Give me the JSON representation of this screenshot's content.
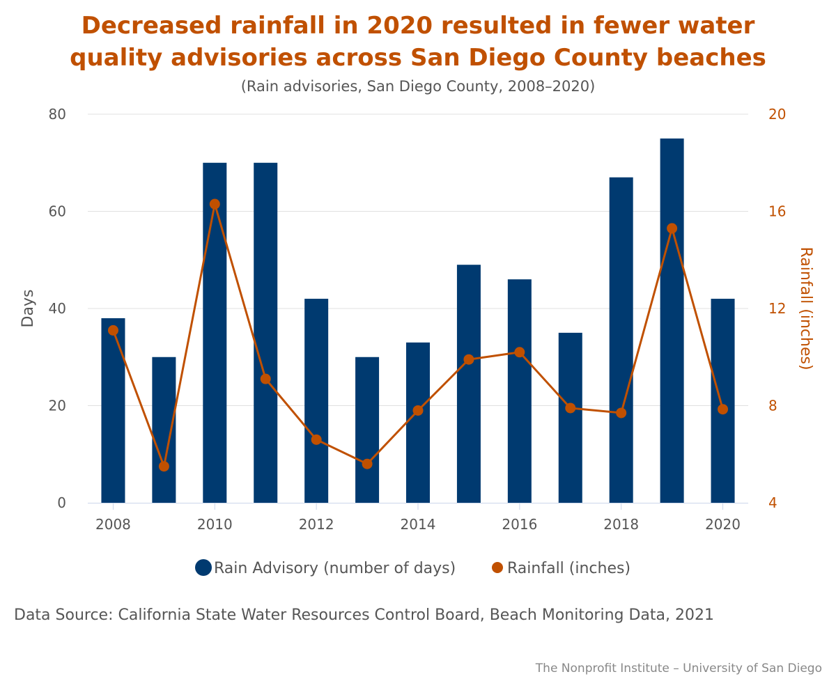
{
  "title_line1": "Decreased rainfall in 2020 resulted in fewer water",
  "title_line2": "quality advisories across San Diego County beaches",
  "subtitle": "(Rain advisories, San Diego County, 2008–2020)",
  "source": "Data Source: California State Water Resources Control Board, Beach Monitoring Data, 2021",
  "credit": "The Nonprofit Institute – University of San Diego",
  "colors": {
    "bar": "#003a70",
    "line": "#c05000",
    "title": "#c05000",
    "axis_text": "#555555",
    "grid": "#e0e0e0"
  },
  "chart_data": {
    "type": "bar",
    "categories": [
      "2008",
      "2009",
      "2010",
      "2011",
      "2012",
      "2013",
      "2014",
      "2015",
      "2016",
      "2017",
      "2018",
      "2019",
      "2020"
    ],
    "x_tick_labels": [
      "2008",
      "2010",
      "2012",
      "2014",
      "2016",
      "2018",
      "2020"
    ],
    "series": [
      {
        "name": "Rain Advisory (number of days)",
        "type": "bar",
        "axis": "left",
        "values": [
          38,
          30,
          70,
          70,
          42,
          30,
          33,
          49,
          46,
          35,
          67,
          75,
          42
        ]
      },
      {
        "name": "Rainfall (inches)",
        "type": "line",
        "axis": "right",
        "values": [
          11.1,
          5.5,
          16.3,
          9.1,
          6.6,
          5.6,
          7.8,
          9.9,
          10.2,
          7.9,
          7.7,
          15.3,
          7.85
        ]
      }
    ],
    "ylabel": "Days",
    "ylim": [
      0,
      80
    ],
    "y_ticks": [
      "0",
      "20",
      "40",
      "60",
      "80"
    ],
    "y2label": "Rainfall (inches)",
    "y2lim": [
      4,
      20
    ],
    "y2_ticks": [
      "4",
      "8",
      "12",
      "16",
      "20"
    ],
    "grid": true,
    "legend_position": "bottom"
  }
}
